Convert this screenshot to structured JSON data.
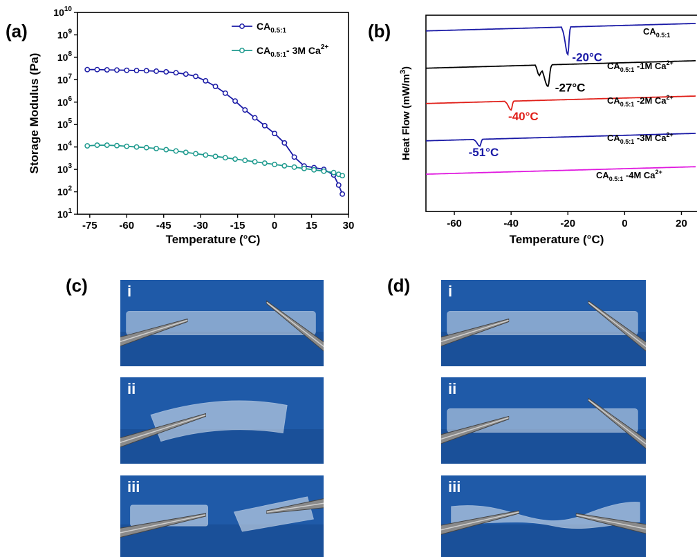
{
  "panel_labels": {
    "a": "(a)",
    "b": "(b)",
    "c": "(c)",
    "d": "(d)"
  },
  "chart_data": [
    {
      "type": "line",
      "panel": "(a)",
      "title": "",
      "xlabel": "Temperature (°C)",
      "ylabel": "Storage Modulus (Pa)",
      "xlim": [
        -80,
        30
      ],
      "ylim_log10": [
        1,
        10
      ],
      "yscale": "log",
      "x_ticks": [
        "-75",
        "-60",
        "-45",
        "-30",
        "-15",
        "0",
        "15",
        "30"
      ],
      "y_tick_exponents": [
        "10",
        "9",
        "8",
        "7",
        "6",
        "5",
        "4",
        "3",
        "2",
        "1"
      ],
      "legend_position": "top-right",
      "series": [
        {
          "name": "CA0.5:1",
          "legend_base": "CA",
          "legend_sub": "0.5:1",
          "legend_suffix": "",
          "color": "#1a1aa6",
          "x": [
            -76,
            -72,
            -68,
            -64,
            -60,
            -56,
            -52,
            -48,
            -44,
            -40,
            -36,
            -32,
            -28,
            -24,
            -20,
            -16,
            -12,
            -8,
            -4,
            0,
            4,
            8,
            12,
            16,
            20,
            24,
            26,
            27.5
          ],
          "log10_y": [
            7.45,
            7.45,
            7.44,
            7.43,
            7.42,
            7.41,
            7.4,
            7.38,
            7.35,
            7.31,
            7.25,
            7.15,
            6.95,
            6.7,
            6.4,
            6.05,
            5.65,
            5.3,
            4.95,
            4.6,
            4.18,
            3.55,
            3.15,
            3.08,
            3.0,
            2.75,
            2.3,
            1.9
          ]
        },
        {
          "name": "CA0.5:1- 3M Ca2+",
          "legend_base": "CA",
          "legend_sub": "0.5:1",
          "legend_suffix": "- 3M Ca",
          "legend_sup": "2+",
          "color": "#1e9a8e",
          "x": [
            -76,
            -72,
            -68,
            -64,
            -60,
            -56,
            -52,
            -48,
            -44,
            -40,
            -36,
            -32,
            -28,
            -24,
            -20,
            -16,
            -12,
            -8,
            -4,
            0,
            4,
            8,
            12,
            16,
            20,
            24,
            26,
            27.5
          ],
          "log10_y": [
            4.05,
            4.08,
            4.08,
            4.06,
            4.03,
            4.0,
            3.97,
            3.93,
            3.88,
            3.82,
            3.76,
            3.7,
            3.64,
            3.58,
            3.52,
            3.46,
            3.4,
            3.34,
            3.28,
            3.22,
            3.16,
            3.1,
            3.04,
            2.98,
            2.92,
            2.86,
            2.78,
            2.72
          ]
        }
      ]
    },
    {
      "type": "line",
      "panel": "(b)",
      "title": "",
      "xlabel": "Temperature (°C)",
      "ylabel": "Heat Flow (mW/m",
      "ylabel_sup": "3",
      "ylabel_end": ")",
      "xlim": [
        -70,
        25
      ],
      "x_ticks": [
        "-60",
        "-40",
        "-20",
        "0",
        "20"
      ],
      "series": [
        {
          "name": "CA0.5:1",
          "label_base": "CA",
          "label_sub": "0.5:1",
          "label_suffix": "",
          "label_sup": "",
          "color": "#1a1aa6",
          "baseline": 0.92,
          "peak_x": -20,
          "peak_depth": 0.14,
          "peak_width": 1.0,
          "peak_label": "-20°C",
          "label_color": "#1a1aa6"
        },
        {
          "name": "CA0.5:1 -1M Ca2+",
          "label_base": "CA",
          "label_sub": "0.5:1",
          "label_suffix": " -1M Ca",
          "label_sup": "2+",
          "color": "#000000",
          "baseline": 0.73,
          "peak_x": -27,
          "peak_depth": 0.11,
          "peak_width": 1.4,
          "peak_label": "-27°C",
          "label_color": "#000000"
        },
        {
          "name": "CA0.5:1 -2M Ca2+",
          "label_base": "CA",
          "label_sub": "0.5:1",
          "label_suffix": " -2M Ca",
          "label_sup": "2+",
          "color": "#e0201a",
          "baseline": 0.55,
          "peak_x": -40,
          "peak_depth": 0.045,
          "peak_width": 1.0,
          "peak_label": "-40°C",
          "label_color": "#e0201a"
        },
        {
          "name": "CA0.5:1 -3M Ca2+",
          "label_base": "CA",
          "label_sub": "0.5:1",
          "label_suffix": " -3M Ca",
          "label_sup": "2+",
          "color": "#1a1aa6",
          "baseline": 0.36,
          "peak_x": -51,
          "peak_depth": 0.035,
          "peak_width": 1.0,
          "peak_label": "-51°C",
          "label_color": "#1a1aa6"
        },
        {
          "name": "CA0.5:1 -4M Ca2+",
          "label_base": "CA",
          "label_sub": "0.5:1",
          "label_suffix": " -4M Ca",
          "label_sup": "2+",
          "color": "#e01adf",
          "baseline": 0.19,
          "peak_x": null,
          "peak_depth": 0,
          "peak_width": 1.0,
          "peak_label": "",
          "label_color": "#000000"
        }
      ]
    }
  ],
  "photos": {
    "c": [
      {
        "label": "i",
        "state": "intact"
      },
      {
        "label": "ii",
        "state": "bent"
      },
      {
        "label": "iii",
        "state": "broken"
      }
    ],
    "d": [
      {
        "label": "i",
        "state": "intact"
      },
      {
        "label": "ii",
        "state": "intact"
      },
      {
        "label": "iii",
        "state": "twisted"
      }
    ]
  },
  "colors": {
    "photo_bg": "#1f5aa8",
    "gel": "#d8e3ee",
    "tweezer": "#8a8a8a"
  }
}
